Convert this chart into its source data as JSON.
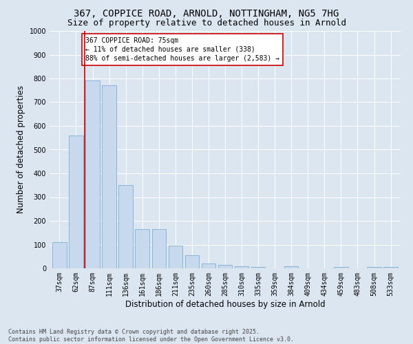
{
  "title_line1": "367, COPPICE ROAD, ARNOLD, NOTTINGHAM, NG5 7HG",
  "title_line2": "Size of property relative to detached houses in Arnold",
  "xlabel": "Distribution of detached houses by size in Arnold",
  "ylabel": "Number of detached properties",
  "categories": [
    "37sqm",
    "62sqm",
    "87sqm",
    "111sqm",
    "136sqm",
    "161sqm",
    "186sqm",
    "211sqm",
    "235sqm",
    "260sqm",
    "285sqm",
    "310sqm",
    "335sqm",
    "359sqm",
    "384sqm",
    "409sqm",
    "434sqm",
    "459sqm",
    "483sqm",
    "508sqm",
    "533sqm"
  ],
  "values": [
    110,
    560,
    790,
    770,
    350,
    165,
    165,
    95,
    55,
    20,
    15,
    10,
    5,
    0,
    8,
    0,
    0,
    5,
    0,
    5,
    5
  ],
  "bar_color": "#c9d9ed",
  "bar_edge_color": "#7bafd4",
  "vline_color": "#cc0000",
  "vline_x": 1.5,
  "annotation_text": "367 COPPICE ROAD: 75sqm\n← 11% of detached houses are smaller (338)\n88% of semi-detached houses are larger (2,583) →",
  "annotation_box_facecolor": "#ffffff",
  "annotation_box_edgecolor": "#cc0000",
  "background_color": "#dce6f1",
  "ylim": [
    0,
    1000
  ],
  "yticks": [
    0,
    100,
    200,
    300,
    400,
    500,
    600,
    700,
    800,
    900,
    1000
  ],
  "footer_line1": "Contains HM Land Registry data © Crown copyright and database right 2025.",
  "footer_line2": "Contains public sector information licensed under the Open Government Licence v3.0.",
  "title_fontsize": 10,
  "subtitle_fontsize": 9,
  "tick_fontsize": 7,
  "label_fontsize": 8.5,
  "annotation_fontsize": 7,
  "footer_fontsize": 6
}
